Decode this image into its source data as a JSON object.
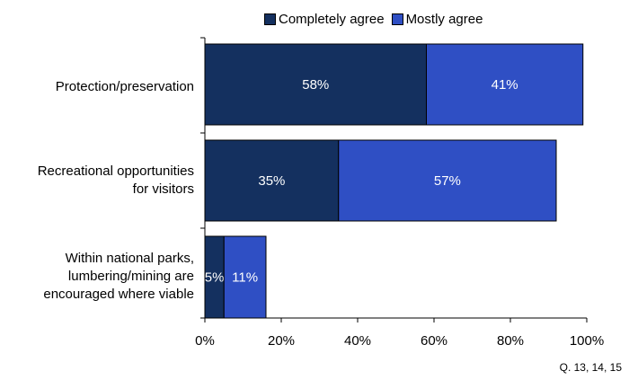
{
  "chart_data": {
    "type": "bar",
    "orientation": "horizontal",
    "stacked": true,
    "categories": [
      [
        "Protection/preservation"
      ],
      [
        "Recreational opportunities",
        "for visitors"
      ],
      [
        "Within national parks,",
        "lumbering/mining are",
        "encouraged where viable"
      ]
    ],
    "series": [
      {
        "name": "Completely agree",
        "values": [
          58,
          35,
          5
        ],
        "labels": [
          "58%",
          "35%",
          "5%"
        ],
        "color": "#14305f"
      },
      {
        "name": "Mostly agree",
        "values": [
          41,
          57,
          11
        ],
        "labels": [
          "41%",
          "57%",
          "11%"
        ],
        "color": "#2f4fc4"
      }
    ],
    "xlim": [
      0,
      100
    ],
    "xticks": [
      "0%",
      "20%",
      "40%",
      "60%",
      "80%",
      "100%"
    ],
    "grid": false,
    "legend_position": "top"
  },
  "footnote": "Q. 13, 14, 15"
}
